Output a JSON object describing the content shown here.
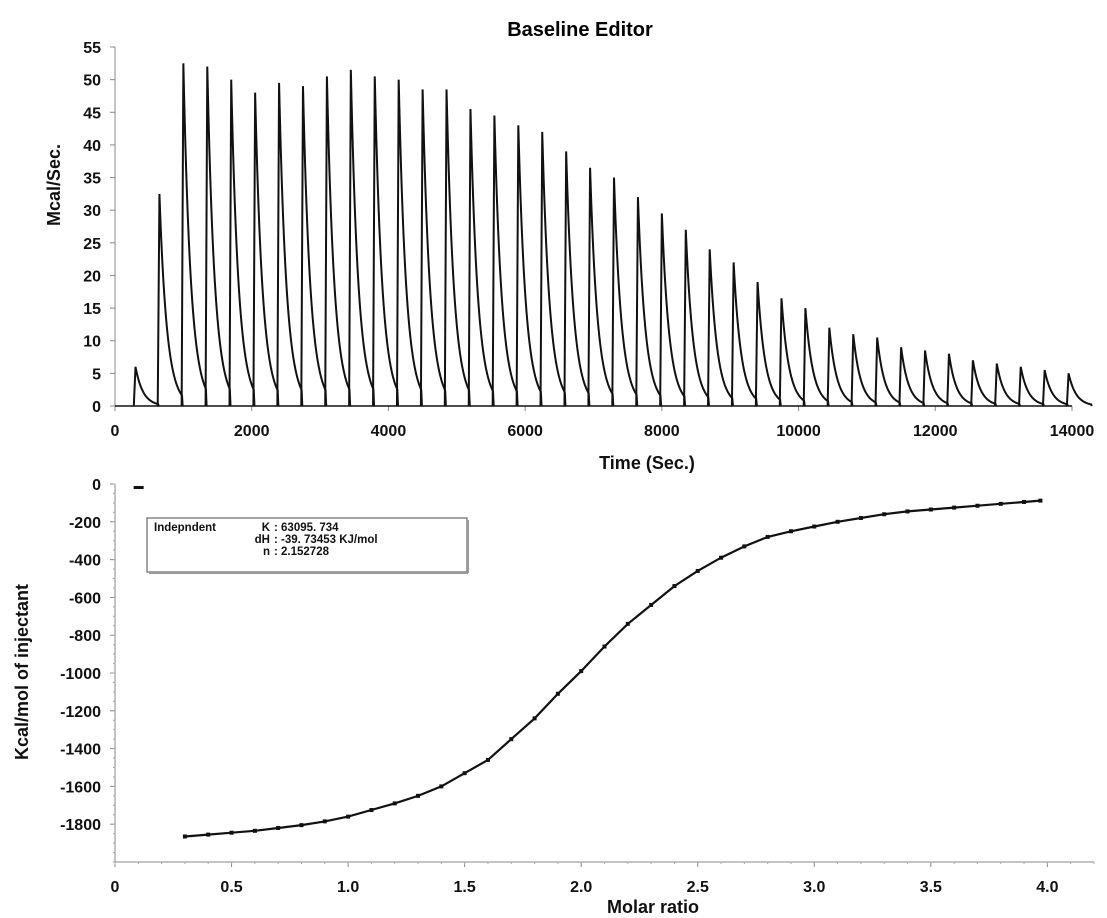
{
  "chart_data": [
    {
      "type": "line",
      "title": "Baseline Editor",
      "xlabel": "Time (Sec.)",
      "ylabel": "Mcal/Sec.",
      "xlim": [
        0,
        14000
      ],
      "ylim": [
        0,
        55
      ],
      "xticks": [
        "0",
        "2000",
        "4000",
        "6000",
        "8000",
        "10000",
        "12000",
        "14000"
      ],
      "yticks": [
        "0",
        "5",
        "10",
        "15",
        "20",
        "25",
        "30",
        "35",
        "40",
        "45",
        "50",
        "55"
      ],
      "series": [
        {
          "peaks_x": [
            300,
            650,
            1000,
            1350,
            1700,
            2050,
            2400,
            2750,
            3100,
            3450,
            3800,
            4150,
            4500,
            4850,
            5200,
            5550,
            5900,
            6250,
            6600,
            6950,
            7300,
            7650,
            8000,
            8350,
            8700,
            9050,
            9400,
            9750,
            10100,
            10450,
            10800,
            11150,
            11500,
            11850,
            12200,
            12550,
            12900,
            13250,
            13600,
            13950
          ],
          "peaks_y": [
            6,
            32.5,
            52.5,
            52,
            50,
            48,
            49.5,
            49,
            50.5,
            51.5,
            50.5,
            50,
            48.5,
            48.5,
            45.5,
            44.5,
            43,
            42,
            39,
            36.5,
            35,
            32,
            29.5,
            27,
            24,
            22,
            19,
            16.5,
            15,
            12,
            11,
            10.5,
            9,
            8.5,
            8,
            7,
            6.5,
            6,
            5.5,
            5
          ]
        }
      ]
    },
    {
      "type": "line",
      "title": "",
      "xlabel": "Molar ratio",
      "ylabel": "Kcal/mol of injectant",
      "xlim": [
        0,
        4.2
      ],
      "ylim": [
        -2000,
        0
      ],
      "xticks": [
        "0",
        "0.5",
        "1.0",
        "1.5",
        "2.0",
        "2.5",
        "3.0",
        "3.5",
        "4.0"
      ],
      "yticks": [
        "0",
        "-200",
        "-400",
        "-600",
        "-800",
        "-1000",
        "-1200",
        "-1400",
        "-1600",
        "-1800"
      ],
      "series": [
        {
          "x": [
            0.3,
            0.4,
            0.5,
            0.6,
            0.7,
            0.8,
            0.9,
            1.0,
            1.1,
            1.2,
            1.3,
            1.4,
            1.5,
            1.6,
            1.7,
            1.8,
            1.9,
            2.0,
            2.1,
            2.2,
            2.3,
            2.4,
            2.5,
            2.6,
            2.7,
            2.8,
            2.9,
            3.0,
            3.1,
            3.2,
            3.3,
            3.4,
            3.5,
            3.6,
            3.7,
            3.8,
            3.9,
            3.97
          ],
          "y": [
            -1865,
            -1855,
            -1845,
            -1835,
            -1820,
            -1805,
            -1785,
            -1760,
            -1725,
            -1690,
            -1650,
            -1600,
            -1530,
            -1460,
            -1350,
            -1240,
            -1110,
            -990,
            -860,
            -740,
            -640,
            -540,
            -460,
            -390,
            -330,
            -280,
            -250,
            -225,
            -200,
            -180,
            -160,
            -145,
            -135,
            -125,
            -115,
            -105,
            -95,
            -88
          ]
        }
      ],
      "annotation": {
        "model": "Indepndent",
        "rows": [
          {
            "key": "K",
            "value": ": 63095. 734"
          },
          {
            "key": "dH",
            "value": ": -39. 73453 KJ/mol"
          },
          {
            "key": "n",
            "value": ": 2.152728"
          }
        ]
      }
    }
  ]
}
